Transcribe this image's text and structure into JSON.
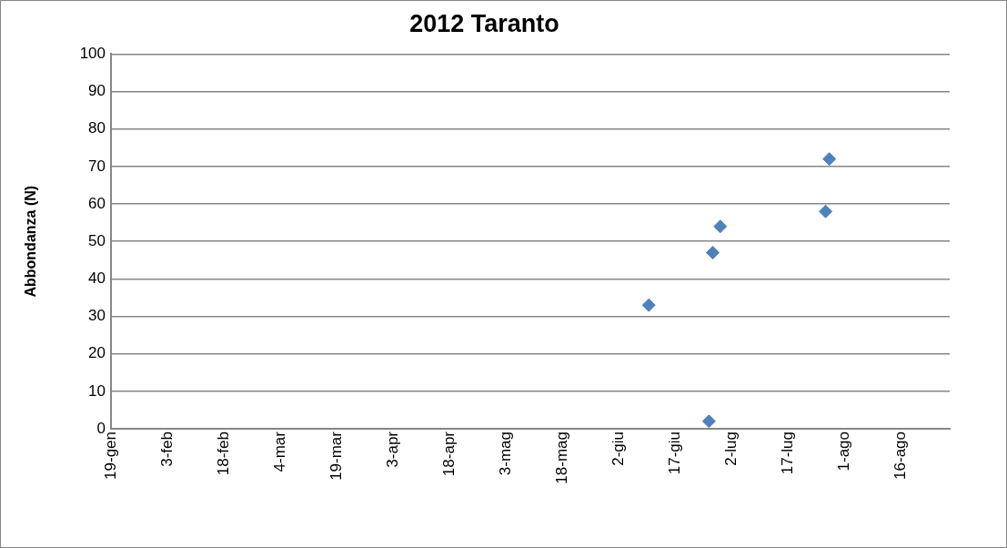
{
  "chart_data": {
    "type": "scatter",
    "title": "2012 Taranto",
    "ylabel": "Abbondanza (N)",
    "x": [
      "2012-06-10",
      "2012-06-26",
      "2012-06-27",
      "2012-06-29",
      "2012-07-27",
      "2012-07-28"
    ],
    "series": [
      {
        "color": "#4f81bd",
        "values": [
          33,
          2,
          47,
          54,
          58,
          72
        ]
      }
    ],
    "marker": "diamond",
    "grid": "y",
    "legend": false,
    "xlim": [
      "2012-01-19",
      "2012-08-29"
    ],
    "xticks": [
      {
        "value": "2012-01-19",
        "label": "19-gen"
      },
      {
        "value": "2012-02-03",
        "label": "3-feb"
      },
      {
        "value": "2012-02-18",
        "label": "18-feb"
      },
      {
        "value": "2012-03-04",
        "label": "4-mar"
      },
      {
        "value": "2012-03-19",
        "label": "19-mar"
      },
      {
        "value": "2012-04-03",
        "label": "3-apr"
      },
      {
        "value": "2012-04-18",
        "label": "18-apr"
      },
      {
        "value": "2012-05-03",
        "label": "3-mag"
      },
      {
        "value": "2012-05-18",
        "label": "18-mag"
      },
      {
        "value": "2012-06-02",
        "label": "2-giu"
      },
      {
        "value": "2012-06-17",
        "label": "17-giu"
      },
      {
        "value": "2012-07-02",
        "label": "2-lug"
      },
      {
        "value": "2012-07-17",
        "label": "17-lug"
      },
      {
        "value": "2012-08-01",
        "label": "1-ago"
      },
      {
        "value": "2012-08-16",
        "label": "16-ago"
      }
    ],
    "ylim": [
      0,
      100
    ],
    "yticks": [
      0,
      10,
      20,
      30,
      40,
      50,
      60,
      70,
      80,
      90,
      100
    ]
  }
}
